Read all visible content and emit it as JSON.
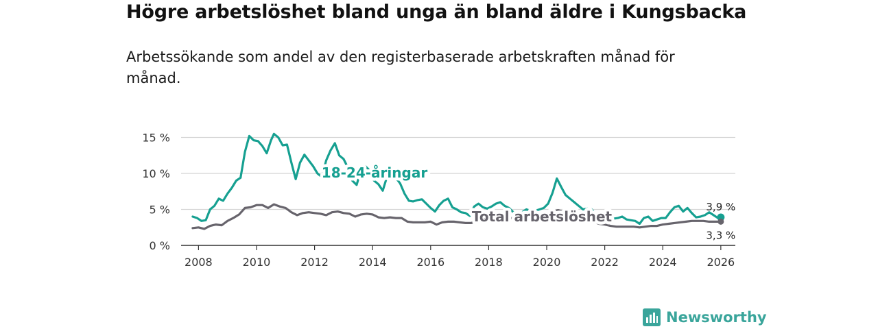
{
  "header": {
    "title": "Högre arbetslöshet bland unga än bland äldre i Kungsbacka",
    "subtitle": "Arbetssökande som andel av den registerbaserade arbetskraften månad för månad."
  },
  "brand": {
    "name": "Newsworthy",
    "icon": "newsworthy-logo-icon",
    "color": "#3aa59b"
  },
  "chart_data": {
    "type": "line",
    "title": "Högre arbetslöshet bland unga än bland äldre i Kungsbacka",
    "ylim": [
      0,
      16
    ],
    "xlim": [
      2007.4,
      2026.5
    ],
    "y_ticks": [
      0,
      5,
      10,
      15
    ],
    "y_tick_labels": [
      "0 %",
      "5 %",
      "10 %",
      "15 %"
    ],
    "x_ticks": [
      2008,
      2010,
      2012,
      2014,
      2016,
      2018,
      2020,
      2022,
      2024,
      2026
    ],
    "x_tick_labels": [
      "2008",
      "2010",
      "2012",
      "2014",
      "2016",
      "2018",
      "2020",
      "2022",
      "2024",
      "2026"
    ],
    "grid": "horizontal",
    "series": [
      {
        "name": "18-24-åringar",
        "color": "#16a091",
        "end_label": "3,9 %",
        "x": [
          2007.8,
          2007.95,
          2008.1,
          2008.25,
          2008.4,
          2008.55,
          2008.7,
          2008.85,
          2009.0,
          2009.15,
          2009.3,
          2009.45,
          2009.6,
          2009.75,
          2009.9,
          2010.05,
          2010.2,
          2010.35,
          2010.5,
          2010.6,
          2010.75,
          2010.9,
          2011.05,
          2011.2,
          2011.35,
          2011.5,
          2011.65,
          2011.8,
          2011.95,
          2012.1,
          2012.25,
          2012.4,
          2012.55,
          2012.7,
          2012.85,
          2013.0,
          2013.15,
          2013.3,
          2013.45,
          2013.6,
          2013.75,
          2013.9,
          2014.05,
          2014.2,
          2014.35,
          2014.5,
          2014.65,
          2014.8,
          2014.95,
          2015.1,
          2015.25,
          2015.4,
          2015.55,
          2015.7,
          2015.85,
          2016.0,
          2016.15,
          2016.3,
          2016.45,
          2016.6,
          2016.75,
          2016.9,
          2017.05,
          2017.2,
          2017.35,
          2017.5,
          2017.65,
          2017.8,
          2017.95,
          2018.1,
          2018.25,
          2018.4,
          2018.55,
          2018.7,
          2018.85,
          2019.0,
          2019.15,
          2019.3,
          2019.45,
          2019.6,
          2019.75,
          2019.9,
          2020.05,
          2020.2,
          2020.35,
          2020.5,
          2020.65,
          2020.8,
          2020.95,
          2021.1,
          2021.25,
          2021.4,
          2021.55,
          2021.7,
          2021.85,
          2022.0,
          2022.15,
          2022.3,
          2022.45,
          2022.6,
          2022.75,
          2022.9,
          2023.05,
          2023.2,
          2023.35,
          2023.5,
          2023.65,
          2023.8,
          2023.95,
          2024.1,
          2024.25,
          2024.4,
          2024.55,
          2024.7,
          2024.85,
          2025.0,
          2025.15,
          2025.3,
          2025.45,
          2025.6,
          2025.75,
          2025.9,
          2026.0
        ],
        "values": [
          4.0,
          3.8,
          3.4,
          3.5,
          5.0,
          5.5,
          6.5,
          6.2,
          7.2,
          8.0,
          9.0,
          9.4,
          13.0,
          15.2,
          14.6,
          14.5,
          13.8,
          12.8,
          14.6,
          15.5,
          15.0,
          13.9,
          14.0,
          11.5,
          9.2,
          11.5,
          12.6,
          11.8,
          11.0,
          10.0,
          9.5,
          11.8,
          13.2,
          14.2,
          12.5,
          12.0,
          10.8,
          9.0,
          8.4,
          10.5,
          11.0,
          10.4,
          9.0,
          8.5,
          7.6,
          9.6,
          10.0,
          9.4,
          8.6,
          7.2,
          6.2,
          6.1,
          6.3,
          6.4,
          5.8,
          5.2,
          4.7,
          5.6,
          6.2,
          6.5,
          5.3,
          5.0,
          4.6,
          4.5,
          4.1,
          5.4,
          5.8,
          5.3,
          5.1,
          5.4,
          5.8,
          6.0,
          5.5,
          5.2,
          4.6,
          4.5,
          4.6,
          5.0,
          4.8,
          4.8,
          5.0,
          5.2,
          5.8,
          7.3,
          9.3,
          8.1,
          7.0,
          6.5,
          6.0,
          5.5,
          5.0,
          5.1,
          5.0,
          4.2,
          3.5,
          3.2,
          3.4,
          3.7,
          3.8,
          4.0,
          3.6,
          3.5,
          3.4,
          3.0,
          3.8,
          4.0,
          3.4,
          3.6,
          3.8,
          3.8,
          4.6,
          5.3,
          5.5,
          4.7,
          5.2,
          4.5,
          3.9,
          4.0,
          4.2,
          4.6,
          4.2,
          3.8,
          3.9
        ]
      },
      {
        "name": "Total arbetslöshet",
        "color": "#67646c",
        "end_label": "3,3 %",
        "x": [
          2007.8,
          2008.0,
          2008.2,
          2008.4,
          2008.6,
          2008.8,
          2009.0,
          2009.2,
          2009.4,
          2009.6,
          2009.8,
          2010.0,
          2010.2,
          2010.4,
          2010.6,
          2010.8,
          2011.0,
          2011.2,
          2011.4,
          2011.6,
          2011.8,
          2012.0,
          2012.2,
          2012.4,
          2012.6,
          2012.8,
          2013.0,
          2013.2,
          2013.4,
          2013.6,
          2013.8,
          2014.0,
          2014.2,
          2014.4,
          2014.6,
          2014.8,
          2015.0,
          2015.2,
          2015.4,
          2015.6,
          2015.8,
          2016.0,
          2016.2,
          2016.4,
          2016.6,
          2016.8,
          2017.0,
          2017.2,
          2017.4,
          2017.6,
          2017.8,
          2018.0,
          2018.2,
          2018.4,
          2018.6,
          2018.8,
          2019.0,
          2019.2,
          2019.4,
          2019.6,
          2019.8,
          2020.0,
          2020.2,
          2020.4,
          2020.6,
          2020.8,
          2021.0,
          2021.2,
          2021.4,
          2021.6,
          2021.8,
          2022.0,
          2022.2,
          2022.4,
          2022.6,
          2022.8,
          2023.0,
          2023.2,
          2023.4,
          2023.6,
          2023.8,
          2024.0,
          2024.2,
          2024.4,
          2024.6,
          2024.8,
          2025.0,
          2025.2,
          2025.4,
          2025.6,
          2025.8,
          2026.0
        ],
        "values": [
          2.4,
          2.5,
          2.3,
          2.7,
          2.9,
          2.8,
          3.4,
          3.8,
          4.3,
          5.2,
          5.3,
          5.6,
          5.6,
          5.2,
          5.7,
          5.4,
          5.2,
          4.6,
          4.2,
          4.5,
          4.6,
          4.5,
          4.4,
          4.2,
          4.6,
          4.7,
          4.5,
          4.4,
          4.0,
          4.3,
          4.4,
          4.3,
          3.9,
          3.8,
          3.9,
          3.8,
          3.8,
          3.3,
          3.2,
          3.2,
          3.2,
          3.3,
          2.9,
          3.2,
          3.3,
          3.3,
          3.2,
          3.1,
          3.1,
          3.4,
          3.6,
          3.7,
          3.9,
          4.0,
          3.7,
          3.8,
          3.8,
          3.9,
          4.1,
          4.3,
          4.4,
          4.5,
          4.7,
          4.9,
          4.6,
          4.3,
          4.0,
          3.7,
          3.6,
          3.3,
          3.0,
          2.9,
          2.7,
          2.6,
          2.6,
          2.6,
          2.6,
          2.5,
          2.6,
          2.7,
          2.7,
          2.9,
          3.0,
          3.1,
          3.2,
          3.3,
          3.4,
          3.4,
          3.4,
          3.3,
          3.3,
          3.3
        ]
      }
    ]
  }
}
